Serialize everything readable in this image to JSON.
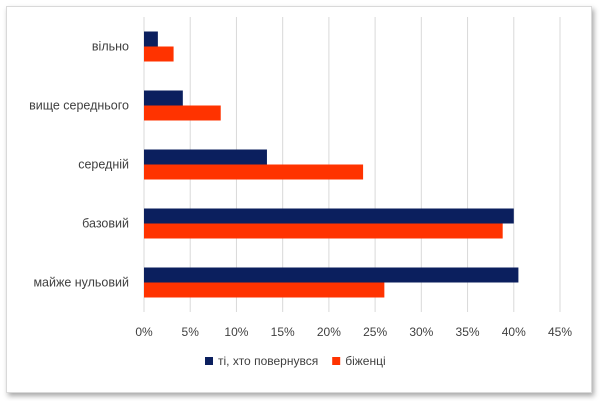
{
  "chart_data": {
    "type": "bar",
    "orientation": "horizontal",
    "categories": [
      "вільно",
      "вище середнього",
      "середній",
      "базовий",
      "майже нульовий"
    ],
    "series": [
      {
        "name": "ті, хто повернувся",
        "color": "#0b1f5e",
        "values": [
          1.5,
          4.2,
          13.3,
          40.0,
          40.5
        ]
      },
      {
        "name": "біженці",
        "color": "#ff3300",
        "values": [
          3.2,
          8.3,
          23.7,
          38.8,
          26.0
        ]
      }
    ],
    "xlim": [
      0,
      45
    ],
    "xticks": [
      0,
      5,
      10,
      15,
      20,
      25,
      30,
      35,
      40,
      45
    ],
    "tick_suffix": "%",
    "grid": "vertical",
    "legend": "bottom"
  }
}
